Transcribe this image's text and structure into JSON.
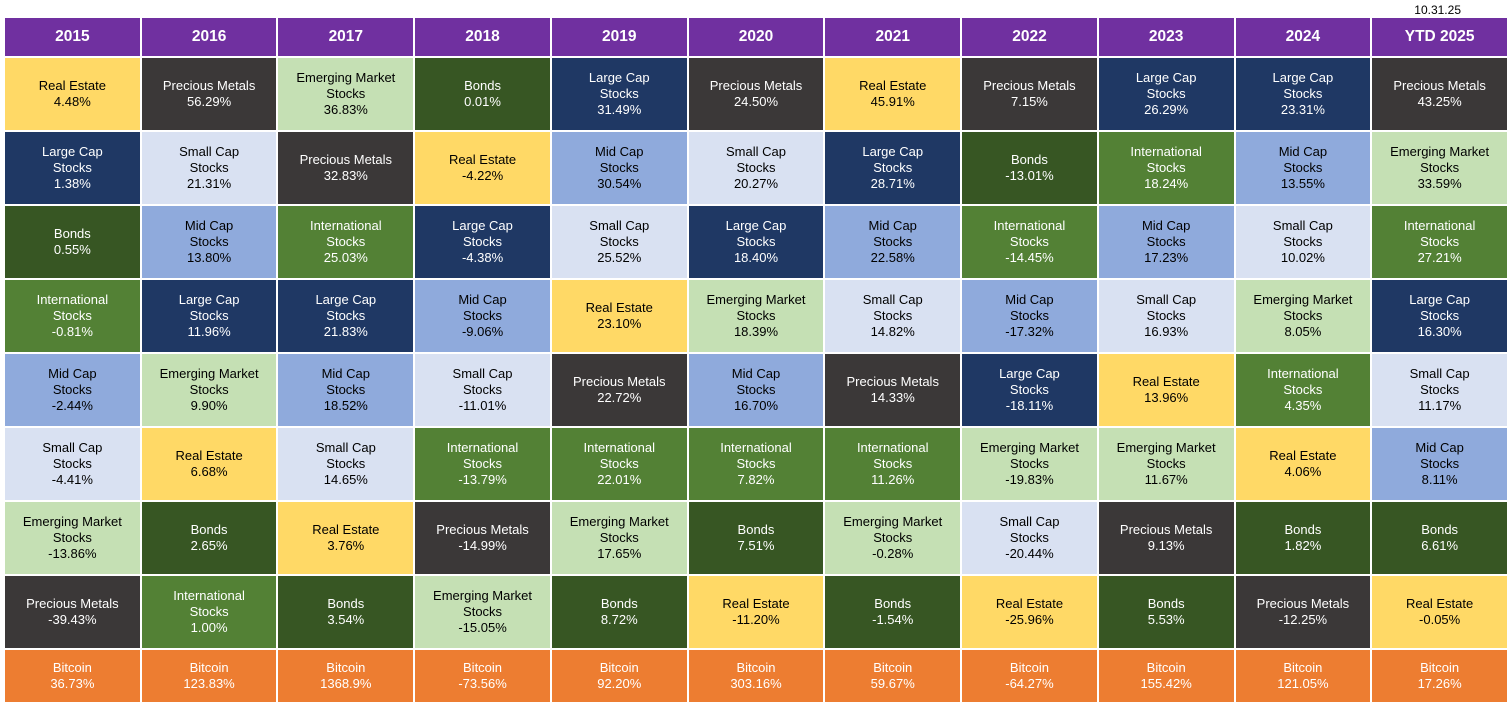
{
  "as_of_date": "10.31.25",
  "assets": {
    "real-estate": {
      "label": "Real Estate",
      "bg": "#FFD966",
      "text": "#000000"
    },
    "precious-metals": {
      "label": "Precious Metals",
      "bg": "#3B3838",
      "text": "#FFFFFF"
    },
    "emerging-market": {
      "label": "Emerging Market\nStocks",
      "bg": "#C5E0B4",
      "text": "#000000"
    },
    "bonds": {
      "label": "Bonds",
      "bg": "#375623",
      "text": "#FFFFFF"
    },
    "large-cap": {
      "label": "Large Cap\nStocks",
      "bg": "#1F3864",
      "text": "#FFFFFF"
    },
    "mid-cap": {
      "label": "Mid Cap\nStocks",
      "bg": "#8FAADC",
      "text": "#000000"
    },
    "small-cap": {
      "label": "Small Cap\nStocks",
      "bg": "#D9E1F2",
      "text": "#000000"
    },
    "international": {
      "label": "International\nStocks",
      "bg": "#538135",
      "text": "#FFFFFF"
    },
    "bitcoin": {
      "label": "Bitcoin",
      "bg": "#ED7D31",
      "text": "#FFFFFF"
    }
  },
  "chart_data": {
    "type": "table",
    "title": "",
    "note": "Asset classes ranked by annual return per year column; Bitcoin shown as separate bottom row; values as displayed",
    "columns": [
      {
        "year": "2015",
        "ranked": [
          {
            "asset": "real-estate",
            "value": "4.48%"
          },
          {
            "asset": "large-cap",
            "value": "1.38%"
          },
          {
            "asset": "bonds",
            "value": "0.55%"
          },
          {
            "asset": "international",
            "value": "-0.81%"
          },
          {
            "asset": "mid-cap",
            "value": "-2.44%"
          },
          {
            "asset": "small-cap",
            "value": "-4.41%"
          },
          {
            "asset": "emerging-market",
            "value": "-13.86%"
          },
          {
            "asset": "precious-metals",
            "value": "-39.43%"
          }
        ],
        "bitcoin": "36.73%"
      },
      {
        "year": "2016",
        "ranked": [
          {
            "asset": "precious-metals",
            "value": "56.29%"
          },
          {
            "asset": "small-cap",
            "value": "21.31%"
          },
          {
            "asset": "mid-cap",
            "value": "13.80%"
          },
          {
            "asset": "large-cap",
            "value": "11.96%"
          },
          {
            "asset": "emerging-market",
            "value": "9.90%"
          },
          {
            "asset": "real-estate",
            "value": "6.68%"
          },
          {
            "asset": "bonds",
            "value": "2.65%"
          },
          {
            "asset": "international",
            "value": "1.00%"
          }
        ],
        "bitcoin": "123.83%"
      },
      {
        "year": "2017",
        "ranked": [
          {
            "asset": "emerging-market",
            "value": "36.83%"
          },
          {
            "asset": "precious-metals",
            "value": "32.83%"
          },
          {
            "asset": "international",
            "value": "25.03%"
          },
          {
            "asset": "large-cap",
            "value": "21.83%"
          },
          {
            "asset": "mid-cap",
            "value": "18.52%"
          },
          {
            "asset": "small-cap",
            "value": "14.65%"
          },
          {
            "asset": "real-estate",
            "value": "3.76%"
          },
          {
            "asset": "bonds",
            "value": "3.54%"
          }
        ],
        "bitcoin": "1368.9%"
      },
      {
        "year": "2018",
        "ranked": [
          {
            "asset": "bonds",
            "value": "0.01%"
          },
          {
            "asset": "real-estate",
            "value": "-4.22%"
          },
          {
            "asset": "large-cap",
            "value": "-4.38%"
          },
          {
            "asset": "mid-cap",
            "value": "-9.06%"
          },
          {
            "asset": "small-cap",
            "value": "-11.01%"
          },
          {
            "asset": "international",
            "value": "-13.79%"
          },
          {
            "asset": "precious-metals",
            "value": "-14.99%"
          },
          {
            "asset": "emerging-market",
            "value": "-15.05%"
          }
        ],
        "bitcoin": "-73.56%"
      },
      {
        "year": "2019",
        "ranked": [
          {
            "asset": "large-cap",
            "value": "31.49%"
          },
          {
            "asset": "mid-cap",
            "value": "30.54%"
          },
          {
            "asset": "small-cap",
            "value": "25.52%"
          },
          {
            "asset": "real-estate",
            "value": "23.10%"
          },
          {
            "asset": "precious-metals",
            "value": "22.72%"
          },
          {
            "asset": "international",
            "value": "22.01%"
          },
          {
            "asset": "emerging-market",
            "value": "17.65%"
          },
          {
            "asset": "bonds",
            "value": "8.72%"
          }
        ],
        "bitcoin": "92.20%"
      },
      {
        "year": "2020",
        "ranked": [
          {
            "asset": "precious-metals",
            "value": "24.50%"
          },
          {
            "asset": "small-cap",
            "value": "20.27%"
          },
          {
            "asset": "large-cap",
            "value": "18.40%"
          },
          {
            "asset": "emerging-market",
            "value": "18.39%"
          },
          {
            "asset": "mid-cap",
            "value": "16.70%"
          },
          {
            "asset": "international",
            "value": "7.82%"
          },
          {
            "asset": "bonds",
            "value": "7.51%"
          },
          {
            "asset": "real-estate",
            "value": "-11.20%"
          }
        ],
        "bitcoin": "303.16%"
      },
      {
        "year": "2021",
        "ranked": [
          {
            "asset": "real-estate",
            "value": "45.91%"
          },
          {
            "asset": "large-cap",
            "value": "28.71%"
          },
          {
            "asset": "mid-cap",
            "value": "22.58%"
          },
          {
            "asset": "small-cap",
            "value": "14.82%"
          },
          {
            "asset": "precious-metals",
            "value": "14.33%"
          },
          {
            "asset": "international",
            "value": "11.26%"
          },
          {
            "asset": "emerging-market",
            "value": "-0.28%"
          },
          {
            "asset": "bonds",
            "value": "-1.54%"
          }
        ],
        "bitcoin": "59.67%"
      },
      {
        "year": "2022",
        "ranked": [
          {
            "asset": "precious-metals",
            "value": "7.15%"
          },
          {
            "asset": "bonds",
            "value": "-13.01%"
          },
          {
            "asset": "international",
            "value": "-14.45%"
          },
          {
            "asset": "mid-cap",
            "value": "-17.32%"
          },
          {
            "asset": "large-cap",
            "value": "-18.11%"
          },
          {
            "asset": "emerging-market",
            "value": "-19.83%"
          },
          {
            "asset": "small-cap",
            "value": "-20.44%"
          },
          {
            "asset": "real-estate",
            "value": "-25.96%"
          }
        ],
        "bitcoin": "-64.27%"
      },
      {
        "year": "2023",
        "ranked": [
          {
            "asset": "large-cap",
            "value": "26.29%"
          },
          {
            "asset": "international",
            "value": "18.24%"
          },
          {
            "asset": "mid-cap",
            "value": "17.23%"
          },
          {
            "asset": "small-cap",
            "value": "16.93%"
          },
          {
            "asset": "real-estate",
            "value": "13.96%"
          },
          {
            "asset": "emerging-market",
            "value": "11.67%"
          },
          {
            "asset": "precious-metals",
            "value": "9.13%"
          },
          {
            "asset": "bonds",
            "value": "5.53%"
          }
        ],
        "bitcoin": "155.42%"
      },
      {
        "year": "2024",
        "ranked": [
          {
            "asset": "large-cap",
            "value": "23.31%"
          },
          {
            "asset": "mid-cap",
            "value": "13.55%"
          },
          {
            "asset": "small-cap",
            "value": "10.02%"
          },
          {
            "asset": "emerging-market",
            "value": "8.05%"
          },
          {
            "asset": "international",
            "value": "4.35%"
          },
          {
            "asset": "real-estate",
            "value": "4.06%"
          },
          {
            "asset": "bonds",
            "value": "1.82%"
          },
          {
            "asset": "precious-metals",
            "value": "-12.25%"
          }
        ],
        "bitcoin": "121.05%"
      },
      {
        "year": "YTD 2025",
        "ranked": [
          {
            "asset": "precious-metals",
            "value": "43.25%"
          },
          {
            "asset": "emerging-market",
            "value": "33.59%"
          },
          {
            "asset": "international",
            "value": "27.21%"
          },
          {
            "asset": "large-cap",
            "value": "16.30%"
          },
          {
            "asset": "small-cap",
            "value": "11.17%"
          },
          {
            "asset": "mid-cap",
            "value": "8.11%"
          },
          {
            "asset": "bonds",
            "value": "6.61%"
          },
          {
            "asset": "real-estate",
            "value": "-0.05%"
          }
        ],
        "bitcoin": "17.26%"
      }
    ]
  },
  "colors": {
    "header_bg": "#7030A0",
    "header_text": "#FFFFFF",
    "background": "#FFFFFF"
  }
}
